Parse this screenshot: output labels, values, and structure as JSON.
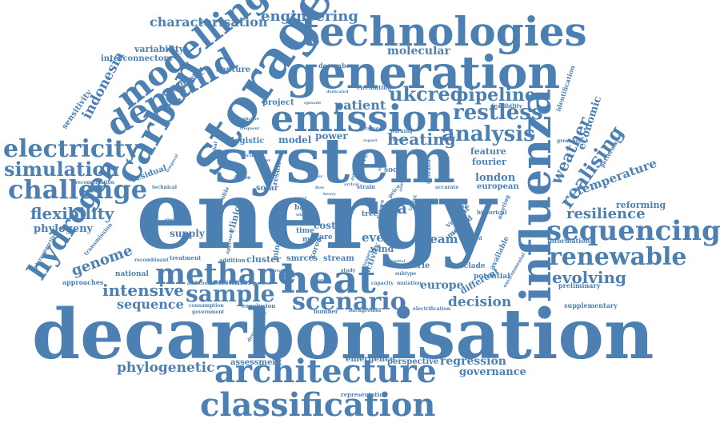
{
  "cloud": {
    "color": "#4c80b3",
    "words": [
      {
        "text": "decarbonisation",
        "weight": 100
      },
      {
        "text": "energy",
        "weight": 98
      },
      {
        "text": "system",
        "weight": 85
      },
      {
        "text": "storage",
        "weight": 68
      },
      {
        "text": "generation",
        "weight": 63
      },
      {
        "text": "technologies",
        "weight": 56
      },
      {
        "text": "influenza",
        "weight": 55
      },
      {
        "text": "emission",
        "weight": 50
      },
      {
        "text": "heat",
        "weight": 50
      },
      {
        "text": "architecture",
        "weight": 45
      },
      {
        "text": "classification",
        "weight": 45
      },
      {
        "text": "carbon",
        "weight": 45
      },
      {
        "text": "demand",
        "weight": 42
      },
      {
        "text": "modelling",
        "weight": 42
      },
      {
        "text": "methane",
        "weight": 38
      },
      {
        "text": "sequencing",
        "weight": 37
      },
      {
        "text": "challenge",
        "weight": 35
      },
      {
        "text": "hydrogen",
        "weight": 35
      },
      {
        "text": "electricity",
        "weight": 34
      },
      {
        "text": "scenario",
        "weight": 33
      },
      {
        "text": "renewable",
        "weight": 32
      },
      {
        "text": "sample",
        "weight": 30
      },
      {
        "text": "analysis",
        "weight": 29
      },
      {
        "text": "restless",
        "weight": 27
      },
      {
        "text": "simulation",
        "weight": 26
      },
      {
        "text": "realising",
        "weight": 25
      },
      {
        "text": "ukcred",
        "weight": 25
      },
      {
        "text": "pipeline",
        "weight": 24
      },
      {
        "text": "engineering",
        "weight": 20
      },
      {
        "text": "characterisation",
        "weight": 18
      },
      {
        "text": "flexibility",
        "weight": 22
      },
      {
        "text": "evolving",
        "weight": 22
      },
      {
        "text": "resilience",
        "weight": 21
      },
      {
        "text": "intensive",
        "weight": 21
      },
      {
        "text": "data",
        "weight": 22
      },
      {
        "text": "heating",
        "weight": 21
      },
      {
        "text": "genome",
        "weight": 20
      },
      {
        "text": "weather",
        "weight": 21
      },
      {
        "text": "indonesia",
        "weight": 19
      },
      {
        "text": "decision",
        "weight": 18
      },
      {
        "text": "phylogenetic",
        "weight": 18
      },
      {
        "text": "patient",
        "weight": 17
      },
      {
        "text": "temperature",
        "weight": 16
      },
      {
        "text": "sequence",
        "weight": 16
      },
      {
        "text": "economic",
        "weight": 15
      },
      {
        "text": "event",
        "weight": 15
      },
      {
        "text": "molecular",
        "weight": 15
      },
      {
        "text": "governance",
        "weight": 14
      },
      {
        "text": "regression",
        "weight": 14
      },
      {
        "text": "europe",
        "weight": 14
      },
      {
        "text": "steam",
        "weight": 15
      },
      {
        "text": "phylogeny",
        "weight": 13
      },
      {
        "text": "model",
        "weight": 13
      },
      {
        "text": "power",
        "weight": 13
      },
      {
        "text": "london",
        "weight": 13
      },
      {
        "text": "feature",
        "weight": 12
      },
      {
        "text": "fourier",
        "weight": 12
      },
      {
        "text": "variability",
        "weight": 12
      },
      {
        "text": "project",
        "weight": 12
      },
      {
        "text": "cost",
        "weight": 12
      },
      {
        "text": "supply",
        "weight": 12
      },
      {
        "text": "clinical",
        "weight": 12
      },
      {
        "text": "wind",
        "weight": 12
      },
      {
        "text": "cluster",
        "weight": 11
      },
      {
        "text": "smrccs",
        "weight": 11
      },
      {
        "text": "stream",
        "weight": 11
      },
      {
        "text": "countrie",
        "weight": 11
      },
      {
        "text": "different",
        "weight": 11
      },
      {
        "text": "reforming",
        "weight": 11
      },
      {
        "text": "european",
        "weight": 11
      },
      {
        "text": "interconnectors",
        "weight": 10
      },
      {
        "text": "capture",
        "weight": 10
      },
      {
        "text": "diagnostic",
        "weight": 10
      },
      {
        "text": "sensitivity",
        "weight": 10
      },
      {
        "text": "residual",
        "weight": 10
      },
      {
        "text": "logistic",
        "weight": 10
      },
      {
        "text": "solar",
        "weight": 10
      },
      {
        "text": "national",
        "weight": 10
      },
      {
        "text": "consumer",
        "weight": 10
      },
      {
        "text": "minority",
        "weight": 10
      },
      {
        "text": "activity",
        "weight": 10
      },
      {
        "text": "emergence",
        "weight": 10
      },
      {
        "text": "perspective",
        "weight": 10
      },
      {
        "text": "assessment",
        "weight": 10
      },
      {
        "text": "social",
        "weight": 9
      },
      {
        "text": "novel",
        "weight": 9
      },
      {
        "text": "result",
        "weight": 9
      },
      {
        "text": "korea",
        "weight": 9
      },
      {
        "text": "tree",
        "weight": 9
      },
      {
        "text": "time",
        "weight": 9
      },
      {
        "text": "care",
        "weight": 9
      },
      {
        "text": "bali",
        "weight": 9
      },
      {
        "text": "most",
        "weight": 9
      },
      {
        "text": "variant",
        "weight": 9
      },
      {
        "text": "method",
        "weight": 9
      },
      {
        "text": "subclade",
        "weight": 9
      },
      {
        "text": "potential",
        "weight": 9
      },
      {
        "text": "available",
        "weight": 9
      },
      {
        "text": "december",
        "weight": 8
      },
      {
        "text": "approaches",
        "weight": 8
      },
      {
        "text": "information",
        "weight": 8
      },
      {
        "text": "preliminary",
        "weight": 8
      },
      {
        "text": "supplementary",
        "weight": 8
      },
      {
        "text": "representation",
        "weight": 7
      },
      {
        "text": "identification",
        "weight": 7
      },
      {
        "text": "performance",
        "weight": 7
      },
      {
        "text": "transmission",
        "weight": 7
      },
      {
        "text": "recombination",
        "weight": 6
      },
      {
        "text": "technical",
        "weight": 6
      },
      {
        "text": "historical",
        "weight": 7
      },
      {
        "text": "meeting",
        "weight": 7
      },
      {
        "text": "greenhouse",
        "weight": 6
      },
      {
        "text": "feasibility",
        "weight": 7
      },
      {
        "text": "circulating",
        "weight": 7
      },
      {
        "text": "treatment",
        "weight": 7
      },
      {
        "text": "addition",
        "weight": 7
      },
      {
        "text": "conclusion",
        "weight": 7
      },
      {
        "text": "electrification",
        "weight": 6
      },
      {
        "text": "background",
        "weight": 6
      },
      {
        "text": "number",
        "weight": 7
      },
      {
        "text": "development",
        "weight": 6
      },
      {
        "text": "consumption",
        "weight": 6
      },
      {
        "text": "government",
        "weight": 6
      },
      {
        "text": "interconnection",
        "weight": 6
      },
      {
        "text": "recombinant",
        "weight": 6
      },
      {
        "text": "additional",
        "weight": 6
      },
      {
        "text": "mutation",
        "weight": 6
      },
      {
        "text": "capacity",
        "weight": 6
      },
      {
        "text": "subtype",
        "weight": 6
      },
      {
        "text": "profile",
        "weight": 7
      },
      {
        "text": "approach",
        "weight": 6
      },
      {
        "text": "strain",
        "weight": 7
      },
      {
        "text": "future",
        "weight": 7
      },
      {
        "text": "price",
        "weight": 7
      },
      {
        "text": "warning",
        "weight": 6
      },
      {
        "text": "viruses",
        "weight": 6
      },
      {
        "text": "study",
        "weight": 6
      },
      {
        "text": "year",
        "weight": 6
      },
      {
        "text": "global",
        "weight": 6
      },
      {
        "text": "driven",
        "weight": 6
      },
      {
        "text": "target",
        "weight": 6
      },
      {
        "text": "impact",
        "weight": 6
      },
      {
        "text": "multiple",
        "weight": 6
      },
      {
        "text": "accurate",
        "weight": 6
      },
      {
        "text": "support",
        "weight": 6
      },
      {
        "text": "revealed",
        "weight": 6
      },
      {
        "text": "informed",
        "weight": 6
      },
      {
        "text": "environmental",
        "weight": 6
      },
      {
        "text": "electrolytic",
        "weight": 5
      },
      {
        "text": "change",
        "weight": 5
      },
      {
        "text": "temporal",
        "weight": 5
      },
      {
        "text": "dedicated",
        "weight": 5
      },
      {
        "text": "episode",
        "weight": 5
      },
      {
        "text": "predictive",
        "weight": 5
      },
      {
        "text": "frequent",
        "weight": 5
      },
      {
        "text": "attribute",
        "weight": 5
      },
      {
        "text": "whole",
        "weight": 5
      },
      {
        "text": "viral",
        "weight": 5
      },
      {
        "text": "paper",
        "weight": 5
      },
      {
        "text": "report",
        "weight": 5
      },
      {
        "text": "order",
        "weight": 5
      },
      {
        "text": "dataset",
        "weight": 5
      },
      {
        "text": "arrival",
        "weight": 5
      },
      {
        "text": "insight",
        "weight": 5
      },
      {
        "text": "driver",
        "weight": 5
      },
      {
        "text": "present",
        "weight": 5
      },
      {
        "text": "hospital",
        "weight": 5
      },
      {
        "text": "resistant",
        "weight": 5
      },
      {
        "text": "length",
        "weight": 5
      },
      {
        "text": "flow",
        "weight": 5
      },
      {
        "text": "heavy",
        "weight": 5
      }
    ]
  }
}
